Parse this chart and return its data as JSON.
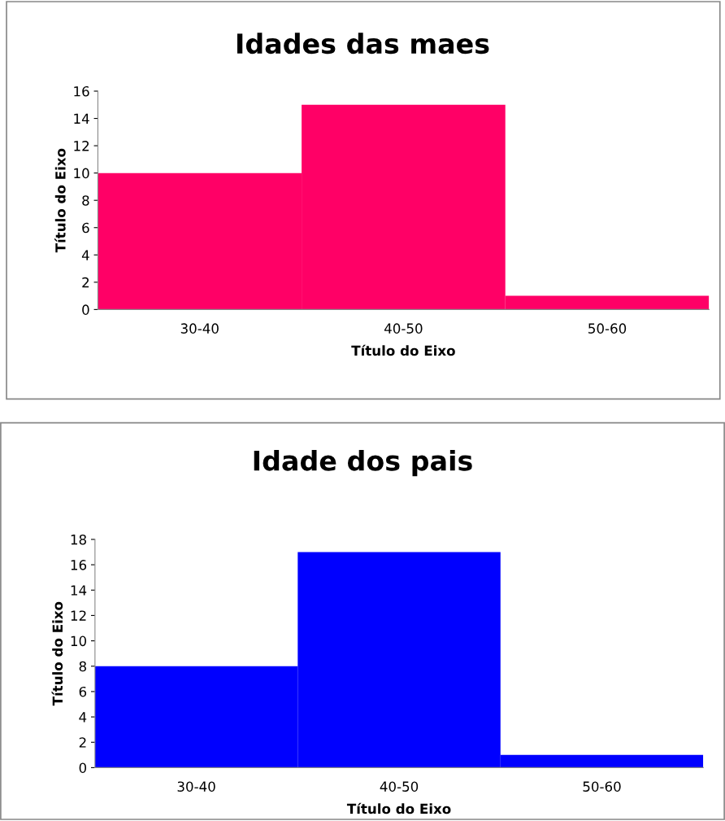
{
  "chart_data": [
    {
      "type": "bar",
      "title": "Idades das maes",
      "xlabel": "Título do Eixo",
      "ylabel": "Título do Eixo",
      "categories": [
        "30-40",
        "40-50",
        "50-60"
      ],
      "values": [
        10,
        15,
        1
      ],
      "color": "#ff0066",
      "ylim": [
        0,
        16
      ],
      "yticks": [
        0,
        2,
        4,
        6,
        8,
        10,
        12,
        14,
        16
      ],
      "grid": false,
      "legend": false
    },
    {
      "type": "bar",
      "title": "Idade dos pais",
      "xlabel": "Título do Eixo",
      "ylabel": "Título do Eixo",
      "categories": [
        "30-40",
        "40-50",
        "50-60"
      ],
      "values": [
        8,
        17,
        1
      ],
      "color": "#0000ff",
      "ylim": [
        0,
        18
      ],
      "yticks": [
        0,
        2,
        4,
        6,
        8,
        10,
        12,
        14,
        16,
        18
      ],
      "grid": false,
      "legend": false
    }
  ]
}
